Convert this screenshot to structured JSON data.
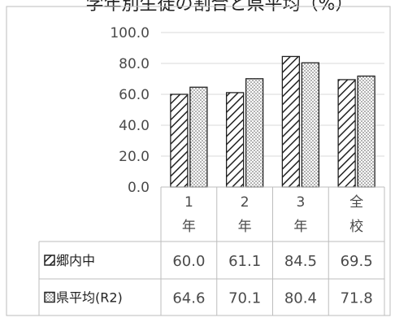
{
  "chart_data": {
    "type": "bar",
    "title": "学年別生徒の割合と県平均（%）",
    "categories": [
      [
        "1",
        "年"
      ],
      [
        "2",
        "年"
      ],
      [
        "3",
        "年"
      ],
      [
        "全",
        "校"
      ]
    ],
    "y_ticks": [
      "100.0",
      "80.0",
      "60.0",
      "40.0",
      "20.0",
      "0.0"
    ],
    "ylim": [
      0,
      100
    ],
    "grid": true,
    "legend_placement": "data-table",
    "series": [
      {
        "name": "郷内中",
        "values": [
          60.0,
          61.1,
          84.5,
          69.5
        ],
        "value_labels": [
          "60.0",
          "61.1",
          "84.5",
          "69.5"
        ],
        "pattern": "diagonal-hatch"
      },
      {
        "name": "県平均(R2)",
        "values": [
          64.6,
          70.1,
          80.4,
          71.8
        ],
        "value_labels": [
          "64.6",
          "70.1",
          "80.4",
          "71.8"
        ],
        "pattern": "dots"
      }
    ],
    "colors": {
      "axis": "#bdbdbd",
      "grid": "#d9d9d9",
      "bar_stroke": "#222222",
      "text": "#4a4a4a"
    }
  }
}
